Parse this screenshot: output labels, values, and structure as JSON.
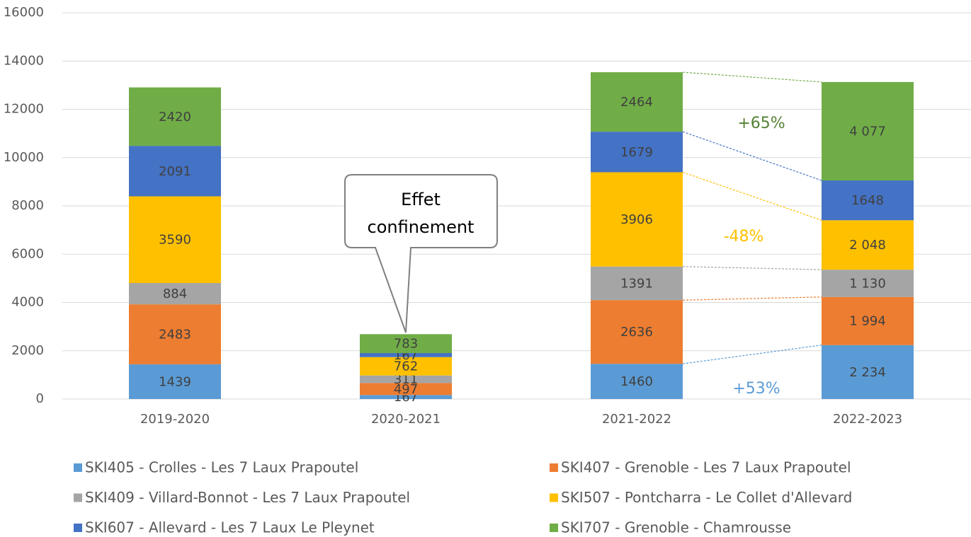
{
  "chart_data": {
    "type": "stacked_bar",
    "categories": [
      "2019-2020",
      "2020-2021",
      "2021-2022",
      "2022-2023"
    ],
    "series": [
      {
        "name": "SKI405 - Crolles - Les 7 Laux Prapoutel",
        "color": "#5b9bd5",
        "values": [
          1439,
          167,
          1460,
          2234
        ],
        "value_labels": [
          "1439",
          "167",
          "1460",
          "2 234"
        ]
      },
      {
        "name": "SKI407 - Grenoble - Les 7 Laux Prapoutel",
        "color": "#ed7d31",
        "values": [
          2483,
          497,
          2636,
          1994
        ],
        "value_labels": [
          "2483",
          "497",
          "2636",
          "1 994"
        ]
      },
      {
        "name": "SKI409 - Villard-Bonnot - Les 7 Laux Prapoutel",
        "color": "#a5a5a5",
        "values": [
          884,
          311,
          1391,
          1130
        ],
        "value_labels": [
          "884",
          "311",
          "1391",
          "1 130"
        ]
      },
      {
        "name": "SKI507 - Pontcharra - Le Collet d'Allevard",
        "color": "#ffc000",
        "values": [
          3590,
          762,
          3906,
          2048
        ],
        "value_labels": [
          "3590",
          "762",
          "3906",
          "2 048"
        ]
      },
      {
        "name": "SKI607 - Allevard - Les 7 Laux Le Pleynet",
        "color": "#4472c4",
        "values": [
          2091,
          167,
          1679,
          1648
        ]
      },
      {
        "name": "SKI707 - Grenoble - Chamrousse",
        "color": "#70ad47",
        "values": [
          2420,
          783,
          2464,
          4077
        ],
        "value_labels": [
          "2420",
          "783",
          "2464",
          "4 077"
        ]
      }
    ],
    "ylim": [
      0,
      16000
    ],
    "yticks": [
      0,
      2000,
      4000,
      6000,
      8000,
      10000,
      12000,
      14000,
      16000
    ],
    "grid": true,
    "legend": "bottom",
    "callout": {
      "lines": [
        "Effet",
        "confinement"
      ]
    },
    "annotations": [
      {
        "text": "+65%",
        "color": "#548235"
      },
      {
        "text": "-48%",
        "color": "#ffc000"
      },
      {
        "text": "+53%",
        "color": "#5b9bd5"
      }
    ]
  }
}
